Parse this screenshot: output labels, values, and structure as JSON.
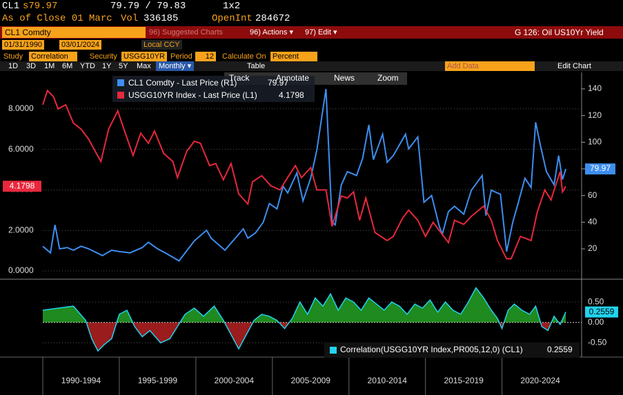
{
  "ui": {
    "ticker": "CL1",
    "last": "s79.97",
    "bidask": "79.79 / 79.83",
    "layout": "1x2",
    "asof": "As of Close 01 Marc",
    "vol_label": "Vol",
    "vol": "336185",
    "oi_label": "OpenInt",
    "oi": "284672",
    "security": "CL1 Comdty",
    "suggested": "96) Suggested Charts",
    "actions": "96) Actions ▾",
    "edit": "97) Edit ▾",
    "chart_name": "G 126: Oil US10Yr Yield",
    "start_date": "01/31/1990",
    "end_date": "03/01/2024",
    "currency": "Local CCY",
    "study_label": "Study",
    "study": "Correlation",
    "sec_label": "Security",
    "sec": "USGG10YR",
    "period_label": "Period",
    "period": "12",
    "calc_label": "Calculate On",
    "calc": "Percent",
    "ranges": [
      "1D",
      "3D",
      "1M",
      "6M",
      "YTD",
      "1Y",
      "5Y",
      "Max"
    ],
    "frequency": "Monthly ▾",
    "table": "Table",
    "add_data": "Add Data",
    "edit_chart": "Edit Chart",
    "tools": [
      "Track",
      "Annotate",
      "News",
      "Zoom"
    ]
  },
  "chart_data": [
    {
      "type": "line",
      "xlim": [
        1990,
        2025.2
      ],
      "ylim": [
        -0.34,
        9.8
      ],
      "y2lim": [
        -1.7,
        152.4
      ],
      "yticks": [
        {
          "value": 0,
          "label": "0.0000"
        },
        {
          "value": 2,
          "label": "2.0000"
        },
        {
          "value": 4,
          "label": "4.0000"
        },
        {
          "value": 6,
          "label": "6.0000"
        },
        {
          "value": 8,
          "label": "8.0000"
        }
      ],
      "y2ticks": [
        20,
        40,
        60,
        80,
        100,
        120,
        140
      ],
      "series": [
        {
          "name": "CL1 Comdty - Last Price (R1)",
          "last_value": 79.97,
          "color": "#3d8ef0",
          "axis": "y2",
          "x": [
            1990.0,
            1990.5,
            1990.8,
            1991.1,
            1991.6,
            1992.0,
            1992.5,
            1993.0,
            1993.9,
            1994.5,
            1995.0,
            1995.7,
            1996.5,
            1996.9,
            1997.5,
            1998.0,
            1998.9,
            1999.5,
            1999.9,
            2000.7,
            2001.0,
            2001.9,
            2002.5,
            2003.1,
            2003.4,
            2003.9,
            2004.4,
            2004.8,
            2005.3,
            2005.7,
            2006.0,
            2006.6,
            2007.0,
            2007.5,
            2007.9,
            2008.5,
            2008.9,
            2009.1,
            2009.5,
            2009.9,
            2010.5,
            2010.9,
            2011.3,
            2011.6,
            2012.2,
            2012.5,
            2012.9,
            2013.7,
            2013.9,
            2014.5,
            2014.9,
            2015.4,
            2015.9,
            2016.1,
            2016.5,
            2016.9,
            2017.5,
            2018.0,
            2018.7,
            2018.95,
            2019.3,
            2019.9,
            2020.3,
            2020.7,
            2021.0,
            2021.5,
            2021.9,
            2022.2,
            2022.5,
            2022.9,
            2023.4,
            2023.7,
            2023.95,
            2024.17
          ],
          "values": [
            22,
            17,
            38,
            20,
            21,
            19,
            22,
            20,
            15,
            19,
            18,
            17,
            21,
            25,
            20,
            17,
            11,
            20,
            26,
            34,
            28,
            19,
            27,
            35,
            28,
            32,
            40,
            54,
            50,
            67,
            62,
            77,
            56,
            73,
            94,
            140,
            40,
            38,
            68,
            78,
            75,
            88,
            113,
            87,
            106,
            85,
            90,
            106,
            95,
            104,
            55,
            60,
            37,
            31,
            48,
            52,
            46,
            64,
            75,
            45,
            64,
            61,
            18,
            40,
            52,
            73,
            66,
            115,
            98,
            78,
            68,
            90,
            72,
            79.97
          ]
        },
        {
          "name": "USGG10YR Index - Last Price (L1)",
          "last_value": 4.1798,
          "color": "#e8283c",
          "axis": "y",
          "x": [
            1990.0,
            1990.3,
            1990.7,
            1991.0,
            1991.5,
            1992.0,
            1992.5,
            1993.0,
            1993.5,
            1993.8,
            1994.3,
            1994.9,
            1995.3,
            1995.9,
            1996.4,
            1996.9,
            1997.3,
            1997.9,
            1998.5,
            1998.8,
            1999.4,
            1999.9,
            2000.3,
            2000.9,
            2001.3,
            2001.8,
            2002.3,
            2002.8,
            2003.4,
            2003.7,
            2004.3,
            2004.9,
            2005.5,
            2005.9,
            2006.5,
            2006.9,
            2007.5,
            2007.9,
            2008.5,
            2008.9,
            2009.5,
            2009.9,
            2010.3,
            2010.7,
            2011.1,
            2011.7,
            2012.5,
            2012.9,
            2013.5,
            2013.9,
            2014.5,
            2015.0,
            2015.5,
            2016.5,
            2016.9,
            2017.5,
            2018.0,
            2018.8,
            2019.3,
            2019.7,
            2020.3,
            2020.6,
            2021.2,
            2021.9,
            2022.3,
            2022.8,
            2023.2,
            2023.8,
            2023.95,
            2024.17
          ],
          "values": [
            8.2,
            8.9,
            8.6,
            8.0,
            8.2,
            7.3,
            7.0,
            6.5,
            5.8,
            5.4,
            7.0,
            7.9,
            7.0,
            5.7,
            6.8,
            6.3,
            6.9,
            5.8,
            5.4,
            4.6,
            5.9,
            6.4,
            6.3,
            5.2,
            5.3,
            4.5,
            5.3,
            3.8,
            3.3,
            4.4,
            4.7,
            4.2,
            4.0,
            4.5,
            5.2,
            4.6,
            5.1,
            4.0,
            4.0,
            2.2,
            3.7,
            3.6,
            3.9,
            2.5,
            3.6,
            1.9,
            1.5,
            1.7,
            2.6,
            3.0,
            2.5,
            1.7,
            2.4,
            1.4,
            2.5,
            2.3,
            2.7,
            3.2,
            2.5,
            1.5,
            0.6,
            0.6,
            1.7,
            1.5,
            2.9,
            4.0,
            3.5,
            4.9,
            3.9,
            4.1798
          ]
        }
      ]
    },
    {
      "type": "area",
      "xlim": [
        1990,
        2025.2
      ],
      "ylim": [
        -0.8,
        1.01
      ],
      "yticks": [
        {
          "value": -0.5,
          "label": "-0.50"
        },
        {
          "value": 0,
          "label": "0.00"
        },
        {
          "value": 0.5,
          "label": "0.50"
        }
      ],
      "x_bands": [
        {
          "label": "1990-1994",
          "from": 1990,
          "to": 1995
        },
        {
          "label": "1995-1999",
          "from": 1995,
          "to": 2000
        },
        {
          "label": "2000-2004",
          "from": 2000,
          "to": 2005
        },
        {
          "label": "2005-2009",
          "from": 2005,
          "to": 2010
        },
        {
          "label": "2010-2014",
          "from": 2010,
          "to": 2015
        },
        {
          "label": "2015-2019",
          "from": 2015,
          "to": 2020
        },
        {
          "label": "2020-2024",
          "from": 2020,
          "to": 2025
        }
      ],
      "series": [
        {
          "name": "Correlation(USGG10YR Index,PR005,12,0) (CL1)",
          "last_value": 0.2559,
          "color": "#22d3ee",
          "positive_color": "#1f8a1f",
          "negative_color": "#9a1c1c",
          "x": [
            1990.0,
            1991.0,
            1992.0,
            1992.8,
            1993.2,
            1993.6,
            1994.0,
            1994.5,
            1995.0,
            1995.5,
            1996.0,
            1996.5,
            1997.0,
            1997.7,
            1998.3,
            1998.8,
            1999.3,
            1999.9,
            2000.5,
            2001.2,
            2001.8,
            2002.3,
            2002.8,
            2003.3,
            2003.8,
            2004.3,
            2004.8,
            2005.3,
            2005.8,
            2006.3,
            2006.8,
            2007.3,
            2007.8,
            2008.3,
            2008.8,
            2009.3,
            2009.8,
            2010.3,
            2010.8,
            2011.3,
            2011.8,
            2012.3,
            2012.8,
            2013.3,
            2013.8,
            2014.3,
            2014.8,
            2015.3,
            2015.8,
            2016.3,
            2016.8,
            2017.3,
            2017.8,
            2018.3,
            2018.8,
            2019.3,
            2019.7,
            2020.0,
            2020.4,
            2020.8,
            2021.3,
            2021.8,
            2022.2,
            2022.6,
            2023.0,
            2023.4,
            2023.8,
            2024.17
          ],
          "values": [
            0.3,
            0.35,
            0.4,
            0.05,
            -0.4,
            -0.7,
            -0.55,
            -0.4,
            0.2,
            0.3,
            -0.1,
            -0.35,
            -0.2,
            -0.5,
            -0.4,
            -0.1,
            0.2,
            0.35,
            0.15,
            0.4,
            0.05,
            -0.3,
            -0.65,
            -0.3,
            0.05,
            0.2,
            0.15,
            0.05,
            -0.15,
            0.1,
            0.5,
            0.2,
            0.6,
            0.4,
            0.7,
            0.3,
            0.6,
            0.5,
            0.3,
            0.6,
            0.45,
            0.3,
            0.5,
            0.4,
            0.2,
            0.45,
            0.35,
            0.55,
            0.25,
            0.5,
            0.3,
            0.2,
            0.5,
            0.85,
            0.6,
            0.3,
            0.1,
            -0.15,
            0.3,
            0.45,
            0.3,
            0.2,
            0.4,
            -0.1,
            -0.2,
            0.15,
            -0.05,
            0.2559
          ]
        }
      ]
    }
  ]
}
